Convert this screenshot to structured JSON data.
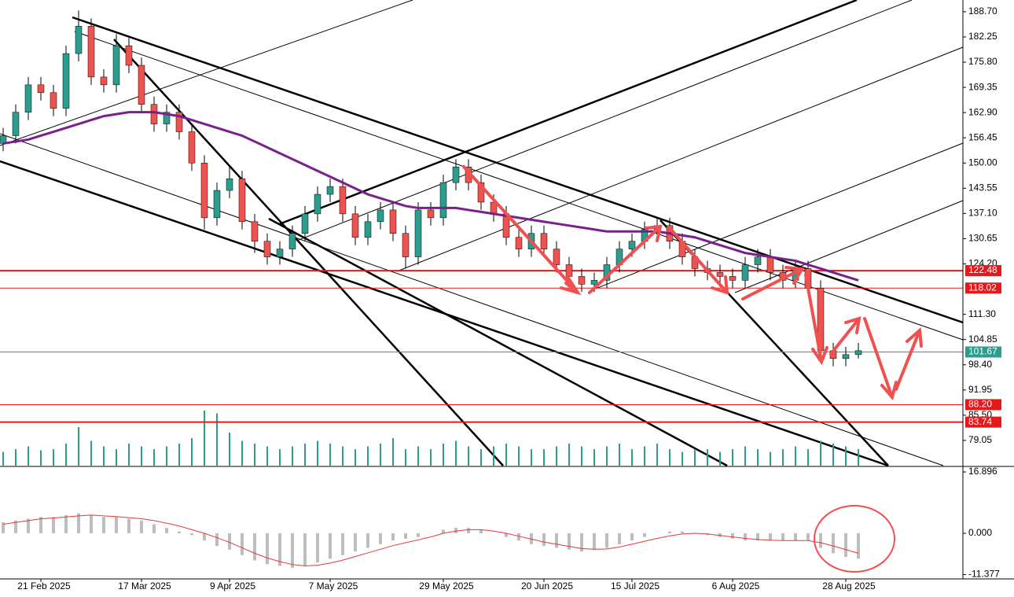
{
  "chart_data": {
    "type": "candlestick",
    "up_color": "#2a9d8f",
    "down_color": "#ef5350",
    "categories": [
      null,
      null,
      null,
      "21 Feb 2025",
      null,
      null,
      null,
      null,
      null,
      null,
      null,
      "17 Mar 2025",
      null,
      null,
      null,
      null,
      null,
      null,
      "9 Apr 2025",
      null,
      null,
      null,
      null,
      null,
      null,
      null,
      "7 May 2025",
      null,
      null,
      null,
      null,
      null,
      null,
      null,
      null,
      "29 May 2025",
      null,
      null,
      null,
      null,
      null,
      null,
      null,
      "20 Jun 2025",
      null,
      null,
      null,
      null,
      null,
      null,
      "15 Jul 2025",
      null,
      null,
      null,
      null,
      null,
      null,
      null,
      "6 Aug 2025",
      null,
      null,
      null,
      null,
      null,
      null,
      null,
      null,
      "28 Aug 2025",
      null
    ],
    "open": [
      155,
      157,
      163,
      170,
      168,
      164,
      178,
      185,
      172,
      170,
      180,
      175,
      165,
      160,
      163,
      158,
      150,
      136,
      143,
      146,
      135,
      130,
      126,
      128,
      132,
      137,
      142,
      144,
      137,
      131,
      135,
      138,
      132,
      126,
      138,
      136,
      145,
      149,
      145,
      140,
      137,
      131,
      128,
      132,
      128,
      124,
      121,
      119,
      120,
      124,
      128,
      130,
      133,
      134,
      130,
      126,
      123,
      122,
      121,
      120,
      124,
      126,
      122,
      120,
      123,
      118,
      102,
      100,
      101
    ],
    "high": [
      159,
      165,
      172,
      172,
      170,
      180,
      189,
      187,
      174,
      183,
      182,
      177,
      167,
      165,
      165,
      160,
      152,
      145,
      149,
      148,
      137,
      132,
      130,
      134,
      139,
      144,
      146,
      146,
      139,
      137,
      140,
      140,
      134,
      140,
      140,
      147,
      151,
      151,
      147,
      142,
      139,
      133,
      134,
      134,
      130,
      126,
      123,
      122,
      126,
      130,
      132,
      135,
      136,
      136,
      132,
      128,
      125,
      124,
      123,
      126,
      128,
      128,
      124,
      125,
      125,
      120,
      104,
      103,
      104
    ],
    "low": [
      153,
      155,
      161,
      166,
      162,
      162,
      176,
      170,
      168,
      168,
      173,
      163,
      158,
      158,
      156,
      148,
      133,
      134,
      141,
      133,
      127,
      124,
      124,
      126,
      130,
      135,
      140,
      135,
      129,
      129,
      133,
      130,
      123,
      124,
      134,
      134,
      143,
      143,
      138,
      135,
      129,
      126,
      126,
      126,
      122,
      119,
      117,
      117,
      118,
      122,
      126,
      128,
      131,
      128,
      124,
      121,
      120,
      119,
      118,
      118,
      122,
      120,
      118,
      118,
      116,
      99,
      98,
      98,
      100
    ],
    "close": [
      157,
      163,
      170,
      168,
      164,
      178,
      185,
      172,
      170,
      180,
      175,
      165,
      160,
      163,
      158,
      150,
      136,
      143,
      146,
      135,
      130,
      126,
      128,
      132,
      137,
      142,
      144,
      137,
      131,
      135,
      138,
      132,
      126,
      138,
      136,
      145,
      149,
      145,
      140,
      137,
      131,
      128,
      132,
      128,
      124,
      121,
      119,
      120,
      124,
      128,
      130,
      133,
      134,
      130,
      126,
      123,
      122,
      121,
      120,
      124,
      126,
      122,
      120,
      123,
      118,
      102,
      100,
      101,
      102
    ],
    "moving_average": {
      "color": "#7b1f8c",
      "values": [
        155,
        155.5,
        156,
        157,
        158,
        159,
        160,
        161,
        162,
        162.5,
        163,
        163,
        163,
        162.5,
        162,
        161,
        160,
        159,
        158,
        157,
        155.5,
        154,
        152.5,
        151,
        149.5,
        148,
        146.5,
        145,
        143.5,
        142,
        141,
        140,
        139,
        138.5,
        138.5,
        138.5,
        138.5,
        138,
        137.5,
        137,
        136.5,
        136,
        135.5,
        135,
        134.5,
        134,
        133.5,
        133,
        132.5,
        132.5,
        132.5,
        132.5,
        132.5,
        132,
        131.5,
        131,
        130,
        129,
        128,
        127,
        126.5,
        126,
        125.5,
        125,
        124,
        123,
        122,
        121,
        120
      ]
    },
    "volume": {
      "color": "#2a9d8f",
      "values": [
        25,
        30,
        35,
        28,
        30,
        40,
        70,
        45,
        35,
        30,
        40,
        35,
        30,
        35,
        40,
        50,
        100,
        95,
        60,
        45,
        40,
        35,
        30,
        35,
        40,
        45,
        40,
        35,
        30,
        35,
        40,
        50,
        30,
        35,
        30,
        40,
        45,
        35,
        30,
        35,
        40,
        35,
        30,
        30,
        35,
        40,
        35,
        30,
        35,
        40,
        30,
        35,
        40,
        30,
        25,
        30,
        30,
        25,
        30,
        35,
        30,
        25,
        30,
        35,
        30,
        45,
        40,
        35,
        30
      ]
    },
    "ylim": [
      72.6,
      191.7
    ],
    "yticks": [
      {
        "value": 188.7,
        "label": "188.70"
      },
      {
        "value": 182.25,
        "label": "182.25"
      },
      {
        "value": 175.8,
        "label": "175.80"
      },
      {
        "value": 169.35,
        "label": "169.35"
      },
      {
        "value": 162.9,
        "label": "162.90"
      },
      {
        "value": 156.45,
        "label": "156.45"
      },
      {
        "value": 150,
        "label": "150.00"
      },
      {
        "value": 143.55,
        "label": "143.55"
      },
      {
        "value": 137.1,
        "label": "137.10"
      },
      {
        "value": 130.65,
        "label": "130.65"
      },
      {
        "value": 124.2,
        "label": "124.20"
      },
      {
        "value": 111.3,
        "label": "111.30"
      },
      {
        "value": 104.85,
        "label": "104.85"
      },
      {
        "value": 98.4,
        "label": "98.40"
      },
      {
        "value": 91.95,
        "label": "91.95"
      },
      {
        "value": 85.5,
        "label": "85.50"
      },
      {
        "value": 79.05,
        "label": "79.05"
      }
    ],
    "levels": [
      {
        "value": 122.48,
        "label": "122.48",
        "color": "#e31a1c"
      },
      {
        "value": 118.02,
        "label": "118.02",
        "color": "#e31a1c"
      },
      {
        "value": 101.67,
        "label": "101.67",
        "color": "#2a9d8f"
      },
      {
        "value": 88.2,
        "label": "88.20",
        "color": "#e31a1c"
      },
      {
        "value": 83.74,
        "label": "83.74",
        "color": "#e31a1c"
      }
    ],
    "indicator": {
      "ylim": [
        -12.35,
        18.2
      ],
      "yticks": [
        {
          "value": 16.896,
          "label": "16.896"
        },
        {
          "value": 0,
          "label": "0.000"
        },
        {
          "value": -11.377,
          "label": "-11.377"
        }
      ],
      "histogram": {
        "color": "#bdbdbd",
        "values": [
          3,
          3.5,
          4,
          4.5,
          4.5,
          5,
          5.5,
          5,
          4.5,
          4.5,
          4,
          3.5,
          2.5,
          1.5,
          0.5,
          -0.5,
          -2,
          -3.5,
          -4.5,
          -6,
          -7.5,
          -8.5,
          -9,
          -9.5,
          -9,
          -8,
          -7,
          -6,
          -5,
          -4,
          -3,
          -2,
          -1.5,
          -1,
          0,
          1,
          1.5,
          1.5,
          1,
          0,
          -1,
          -2,
          -3,
          -3.5,
          -4,
          -4.5,
          -5,
          -4.5,
          -4,
          -3,
          -2,
          -1,
          0,
          0.5,
          0.5,
          0,
          -0.5,
          -1,
          -1.5,
          -2,
          -2,
          -2,
          -2,
          -2,
          -2,
          -4,
          -5.5,
          -6.5,
          -7
        ]
      },
      "signal": {
        "color": "#e53935",
        "values": [
          2.5,
          3,
          3.5,
          4,
          4.2,
          4.5,
          4.8,
          5,
          4.8,
          4.6,
          4.3,
          4,
          3.5,
          2.8,
          2,
          1,
          0,
          -1.2,
          -2.5,
          -4,
          -5.5,
          -6.8,
          -7.8,
          -8.6,
          -9,
          -8.8,
          -8.2,
          -7.4,
          -6.4,
          -5.4,
          -4.4,
          -3.4,
          -2.6,
          -1.8,
          -1,
          0,
          0.6,
          1,
          1,
          0.6,
          0,
          -0.8,
          -1.6,
          -2.4,
          -3,
          -3.6,
          -4.2,
          -4.4,
          -4.3,
          -3.8,
          -3,
          -2.2,
          -1.4,
          -0.7,
          -0.2,
          0,
          -0.2,
          -0.6,
          -1,
          -1.4,
          -1.7,
          -1.9,
          -2,
          -2,
          -2,
          -2.6,
          -3.5,
          -4.5,
          -5.5
        ]
      }
    }
  }
}
